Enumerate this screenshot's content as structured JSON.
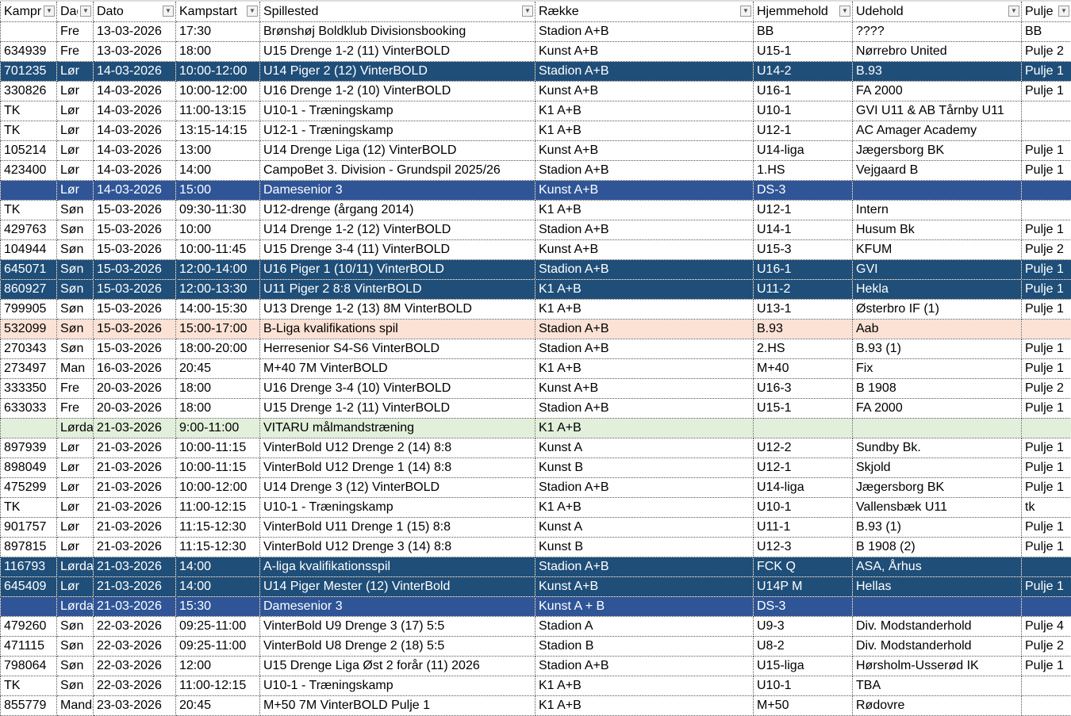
{
  "headers": [
    "Kampnr",
    "Dag",
    "Dato",
    "Kampstart",
    "Spillested",
    "Række",
    "Hjemmehold",
    "Udehold",
    "Pulje"
  ],
  "filter_icon": "dropdown-arrow-icon",
  "row_colors": {
    "dark": "#1f4e78",
    "blue": "#2f5597",
    "peach": "#fbe2d5",
    "green": "#e2efda"
  },
  "rows": [
    {
      "style": "",
      "cells": [
        "",
        "Fre",
        "13-03-2026",
        "17:30",
        "Brønshøj Boldklub Divisionsbooking",
        "Stadion A+B",
        "BB",
        "????",
        "BB"
      ]
    },
    {
      "style": "",
      "cells": [
        "634939",
        "Fre",
        "13-03-2026",
        "18:00",
        "U15 Drenge 1-2 (11) VinterBOLD",
        "Kunst A+B",
        "U15-1",
        "Nørrebro United",
        "Pulje 2"
      ]
    },
    {
      "style": "dark",
      "cells": [
        "701235",
        "Lør",
        "14-03-2026",
        "10:00-12:00",
        "U14 Piger 2 (12) VinterBOLD",
        "Stadion A+B",
        "U14-2",
        "B.93",
        "Pulje 1"
      ]
    },
    {
      "style": "",
      "cells": [
        "330826",
        "Lør",
        "14-03-2026",
        "10:00-12:00",
        "U16 Drenge 1-2 (10) VinterBOLD",
        "Kunst A+B",
        "U16-1",
        "FA 2000",
        "Pulje 1"
      ]
    },
    {
      "style": "",
      "cells": [
        "TK",
        "Lør",
        "14-03-2026",
        "11:00-13:15",
        "U10-1 - Træningskamp",
        "K1 A+B",
        "U10-1",
        "GVI U11 & AB Tårnby U11",
        ""
      ]
    },
    {
      "style": "",
      "cells": [
        "TK",
        "Lør",
        "14-03-2026",
        "13:15-14:15",
        "U12-1 - Træningskamp",
        "K1 A+B",
        "U12-1",
        "AC Amager Academy",
        ""
      ]
    },
    {
      "style": "",
      "cells": [
        "105214",
        "Lør",
        "14-03-2026",
        "13:00",
        "U14 Drenge Liga (12) VinterBOLD",
        "Kunst A+B",
        "U14-liga",
        "Jægersborg BK",
        "Pulje 1"
      ]
    },
    {
      "style": "",
      "cells": [
        "423400",
        "Lør",
        "14-03-2026",
        "14:00",
        "CampoBet 3. Division - Grundspil 2025/26",
        "Stadion A+B",
        "1.HS",
        "Vejgaard B",
        "Pulje 1"
      ]
    },
    {
      "style": "blue",
      "cells": [
        "",
        "Lør",
        "14-03-2026",
        "15:00",
        "Damesenior 3",
        "Kunst A+B",
        "DS-3",
        "",
        ""
      ]
    },
    {
      "style": "",
      "cells": [
        "TK",
        "Søn",
        "15-03-2026",
        "09:30-11:30",
        "U12-drenge (årgang 2014)",
        "K1 A+B",
        "U12-1",
        "Intern",
        ""
      ]
    },
    {
      "style": "",
      "cells": [
        "429763",
        "Søn",
        "15-03-2026",
        "10:00",
        "U14 Drenge 1-2 (12) VinterBOLD",
        "Stadion A+B",
        "U14-1",
        "Husum Bk",
        "Pulje 1"
      ]
    },
    {
      "style": "",
      "cells": [
        "104944",
        "Søn",
        "15-03-2026",
        "10:00-11:45",
        "U15 Drenge 3-4 (11) VinterBOLD",
        "Kunst A+B",
        "U15-3",
        "KFUM",
        "Pulje 2"
      ]
    },
    {
      "style": "dark",
      "cells": [
        "645071",
        "Søn",
        "15-03-2026",
        "12:00-14:00",
        "U16 Piger 1 (10/11) VinterBOLD",
        "Stadion A+B",
        "U16-1",
        "GVI",
        "Pulje 1"
      ]
    },
    {
      "style": "dark",
      "cells": [
        "860927",
        "Søn",
        "15-03-2026",
        "12:00-13:30",
        "U11 Piger 2 8:8 VinterBOLD",
        "K1 A+B",
        "U11-2",
        "Hekla",
        "Pulje 1"
      ]
    },
    {
      "style": "",
      "cells": [
        "799905",
        "Søn",
        "15-03-2026",
        "14:00-15:30",
        "U13 Drenge 1-2 (13) 8M VinterBOLD",
        "K1 A+B",
        "U13-1",
        "Østerbro IF (1)",
        "Pulje 1"
      ]
    },
    {
      "style": "peach",
      "cells": [
        "532099",
        "Søn",
        "15-03-2026",
        "15:00-17:00",
        "B-Liga kvalifikations spil",
        "Stadion A+B",
        "B.93",
        "Aab",
        ""
      ]
    },
    {
      "style": "",
      "cells": [
        "270343",
        "Søn",
        "15-03-2026",
        "18:00-20:00",
        "Herresenior S4-S6 VinterBOLD",
        " Stadion A+B",
        "2.HS",
        "B.93 (1)",
        "Pulje 1"
      ]
    },
    {
      "style": "",
      "cells": [
        "273497",
        "Man",
        "16-03-2026",
        "20:45",
        "M+40 7M VinterBOLD",
        "K1 A+B",
        "M+40",
        "Fix",
        "Pulje 1"
      ]
    },
    {
      "style": "",
      "cells": [
        "333350",
        "Fre",
        "20-03-2026",
        "18:00",
        "U16 Drenge 3-4 (10) VinterBOLD",
        "Kunst A+B",
        "U16-3",
        "B 1908",
        "Pulje 2"
      ]
    },
    {
      "style": "",
      "cells": [
        "633033",
        "Fre",
        "20-03-2026",
        "18:00",
        "U15 Drenge 1-2 (11) VinterBOLD",
        "Stadion A+B",
        "U15-1",
        "FA 2000",
        "Pulje 1"
      ]
    },
    {
      "style": "green",
      "cells": [
        "",
        "Lørdag",
        "21-03-2026",
        "9:00-11:00",
        "VITARU målmandstræning",
        "K1 A+B",
        "",
        "",
        ""
      ]
    },
    {
      "style": "",
      "cells": [
        "897939",
        "Lør",
        "21-03-2026",
        "10:00-11:15",
        "VinterBold U12 Drenge 2 (14) 8:8",
        "Kunst A",
        "U12-2",
        "Sundby Bk.",
        "Pulje 1"
      ]
    },
    {
      "style": "",
      "cells": [
        "898049",
        "Lør",
        "21-03-2026",
        "10:00-11:15",
        "VinterBold U12 Drenge 1 (14) 8:8",
        "Kunst B",
        "U12-1",
        "Skjold",
        "Pulje 1"
      ]
    },
    {
      "style": "",
      "cells": [
        "475299",
        "Lør",
        "21-03-2026",
        "10:00-12:00",
        "U14 Drenge 3 (12) VinterBOLD",
        "Stadion A+B",
        "U14-liga",
        "Jægersborg BK",
        "Pulje 1"
      ]
    },
    {
      "style": "",
      "cells": [
        "TK",
        "Lør",
        "21-03-2026",
        "11:00-12:15",
        "U10-1 - Træningskamp",
        "K1 A+B",
        "U10-1",
        "Vallensbæk U11",
        "tk"
      ]
    },
    {
      "style": "",
      "cells": [
        "901757",
        "Lør",
        "21-03-2026",
        "11:15-12:30",
        "VinterBold U11 Drenge 1 (15) 8:8",
        "Kunst A",
        "U11-1",
        "B.93 (1)",
        "Pulje 1"
      ]
    },
    {
      "style": "",
      "cells": [
        "897815",
        "Lør",
        "21-03-2026",
        "11:15-12:30",
        "VinterBold U12 Drenge 3 (14) 8:8",
        "Kunst B",
        "U12-3",
        "B 1908 (2)",
        "Pulje 1"
      ]
    },
    {
      "style": "dark",
      "cells": [
        "116793",
        "Lørdag",
        "21-03-2026",
        "14:00",
        "A-liga kvalifikationsspil",
        "Stadion A+B",
        "FCK Q",
        "ASA, Århus",
        ""
      ]
    },
    {
      "style": "dark",
      "cells": [
        "645409",
        "Lør",
        "21-03-2026",
        "14:00",
        "U14 Piger Mester (12) VinterBold",
        "Kunst A+B",
        "U14P M",
        "Hellas",
        "Pulje 1"
      ]
    },
    {
      "style": "blue",
      "cells": [
        "",
        "Lørdag",
        "21-03-2026",
        "15:30",
        "Damesenior 3",
        "Kunst A + B",
        "DS-3",
        "",
        ""
      ]
    },
    {
      "style": "",
      "cells": [
        "479260",
        "Søn",
        "22-03-2026",
        "09:25-11:00",
        "VinterBold U9 Drenge 3 (17) 5:5",
        "Stadion A",
        "U9-3",
        "Div. Modstanderhold",
        "Pulje 4"
      ]
    },
    {
      "style": "",
      "cells": [
        "471115",
        "Søn",
        "22-03-2026",
        "09:25-11:00",
        "VinterBold U8 Drenge 2 (18) 5:5",
        "Stadion B",
        "U8-2",
        "Div. Modstanderhold",
        "Pulje 2"
      ]
    },
    {
      "style": "",
      "cells": [
        "798064",
        "Søn",
        "22-03-2026",
        "12:00",
        "U15 Drenge Liga Øst 2 forår (11) 2026",
        "Stadion A+B",
        "U15-liga",
        "Hørsholm-Usserød IK",
        "Pulje 1"
      ]
    },
    {
      "style": "",
      "cells": [
        "TK",
        "Søn",
        "22-03-2026",
        "11:00-12:15",
        "U10-1 - Træningskamp",
        "K1 A+B",
        "U10-1",
        "TBA",
        ""
      ]
    },
    {
      "style": "",
      "cells": [
        "855779",
        "Mandag",
        "23-03-2026",
        "20:45",
        "M+50 7M VinterBOLD Pulje 1",
        "K1 A+B",
        "M+50",
        "Rødovre",
        ""
      ]
    }
  ]
}
